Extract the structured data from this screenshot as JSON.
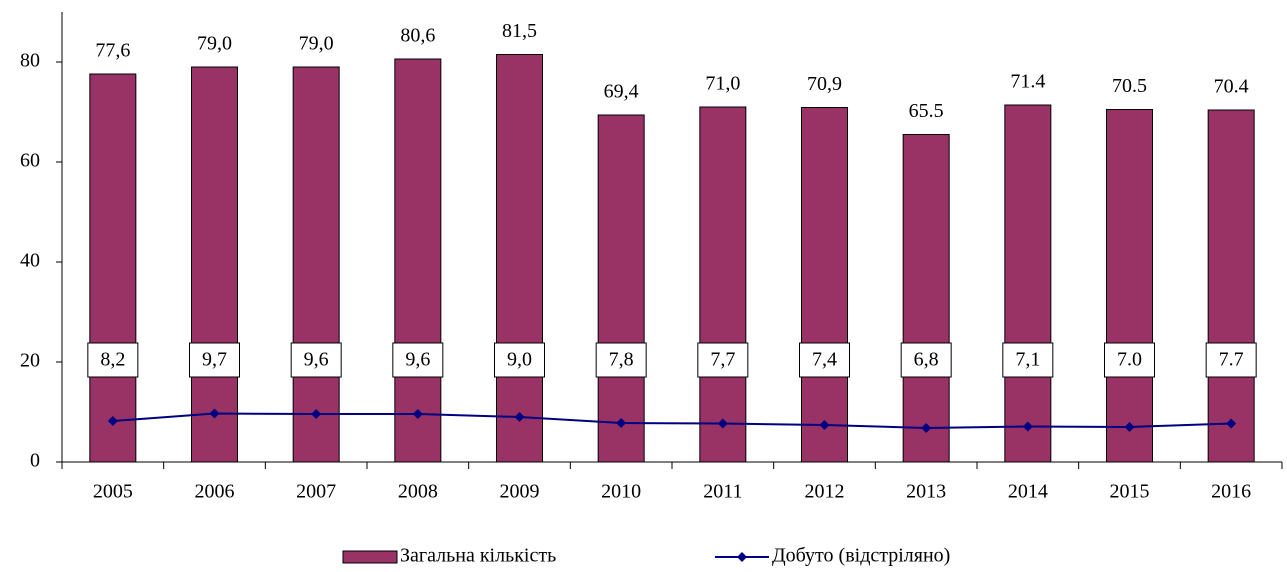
{
  "chart_data": {
    "type": "bar_line",
    "categories": [
      "2005",
      "2006",
      "2007",
      "2008",
      "2009",
      "2010",
      "2011",
      "2012",
      "2013",
      "2014",
      "2015",
      "2016"
    ],
    "series": [
      {
        "name": "Загальна кількість",
        "type": "bar",
        "color": "#993366",
        "values": [
          77.6,
          79.0,
          79.0,
          80.6,
          81.5,
          69.4,
          71.0,
          70.9,
          65.5,
          71.4,
          70.5,
          70.4
        ],
        "value_labels": [
          "77,6",
          "79,0",
          "79,0",
          "80,6",
          "81,5",
          "69,4",
          "71,0",
          "70,9",
          "65.5",
          "71.4",
          "70.5",
          "70.4"
        ]
      },
      {
        "name": "Добуто (відстріляно)",
        "type": "line",
        "color": "#000080",
        "values": [
          8.2,
          9.7,
          9.6,
          9.6,
          9.0,
          7.8,
          7.7,
          7.4,
          6.8,
          7.1,
          7.0,
          7.7
        ],
        "value_labels": [
          "8,2",
          "9,7",
          "9,6",
          "9,6",
          "9,0",
          "7,8",
          "7,7",
          "7,4",
          "6,8",
          "7,1",
          "7.0",
          "7.7"
        ]
      }
    ],
    "ylim": [
      0,
      90
    ],
    "yticks": [
      0,
      20,
      40,
      60,
      80
    ],
    "legend": "bottom"
  }
}
